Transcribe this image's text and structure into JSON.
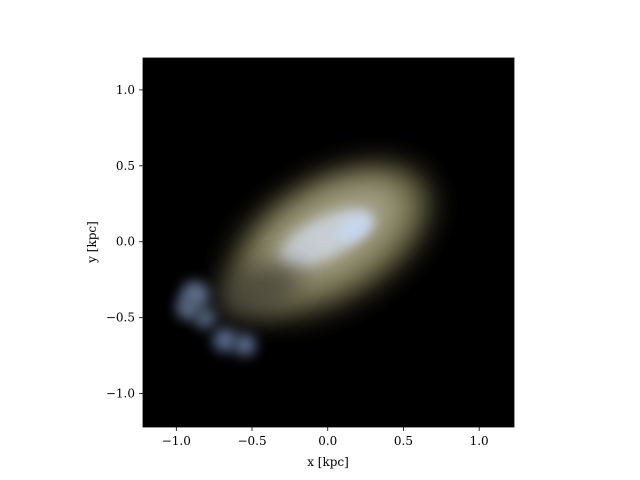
{
  "chart_data": {
    "type": "image",
    "xlabel": "x [kpc]",
    "ylabel": "y [kpc]",
    "xlim": [
      -1.22,
      1.23
    ],
    "ylim": [
      -1.22,
      1.21
    ],
    "xticks": [
      {
        "value": -1.0,
        "label": "−1.0"
      },
      {
        "value": -0.5,
        "label": "−0.5"
      },
      {
        "value": 0,
        "label": "0.0"
      },
      {
        "value": 0.5,
        "label": "0.5"
      },
      {
        "value": 1.0,
        "label": "1.0"
      }
    ],
    "yticks": [
      {
        "value": -1.0,
        "label": "−1.0"
      },
      {
        "value": -0.5,
        "label": "−0.5"
      },
      {
        "value": 0,
        "label": "0.0"
      },
      {
        "value": 0.5,
        "label": "0.5"
      },
      {
        "value": 1.0,
        "label": "1.0"
      }
    ]
  }
}
